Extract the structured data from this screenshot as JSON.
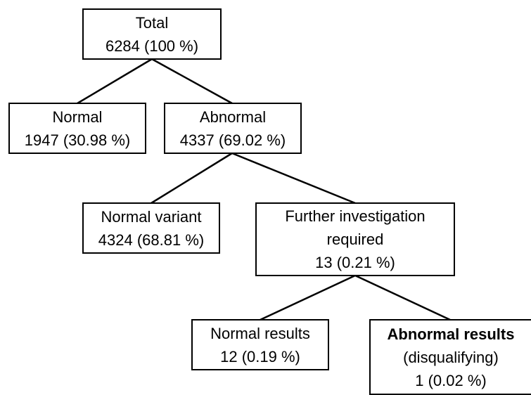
{
  "nodes": {
    "total": {
      "label": "Total",
      "value": "6284 (100 %)"
    },
    "normal": {
      "label": "Normal",
      "value": "1947 (30.98 %)"
    },
    "abnormal": {
      "label": "Abnormal",
      "value": "4337 (69.02 %)"
    },
    "normal_variant": {
      "label": "Normal variant",
      "value": "4324 (68.81 %)"
    },
    "further": {
      "label_line1": "Further investigation",
      "label_line2": "required",
      "value": "13 (0.21 %)"
    },
    "normal_results": {
      "label": "Normal results",
      "value": "12 (0.19 %)"
    },
    "abnormal_results": {
      "label": "Abnormal results",
      "sublabel": "(disqualifying)",
      "value": "1 (0.02 %)"
    }
  }
}
